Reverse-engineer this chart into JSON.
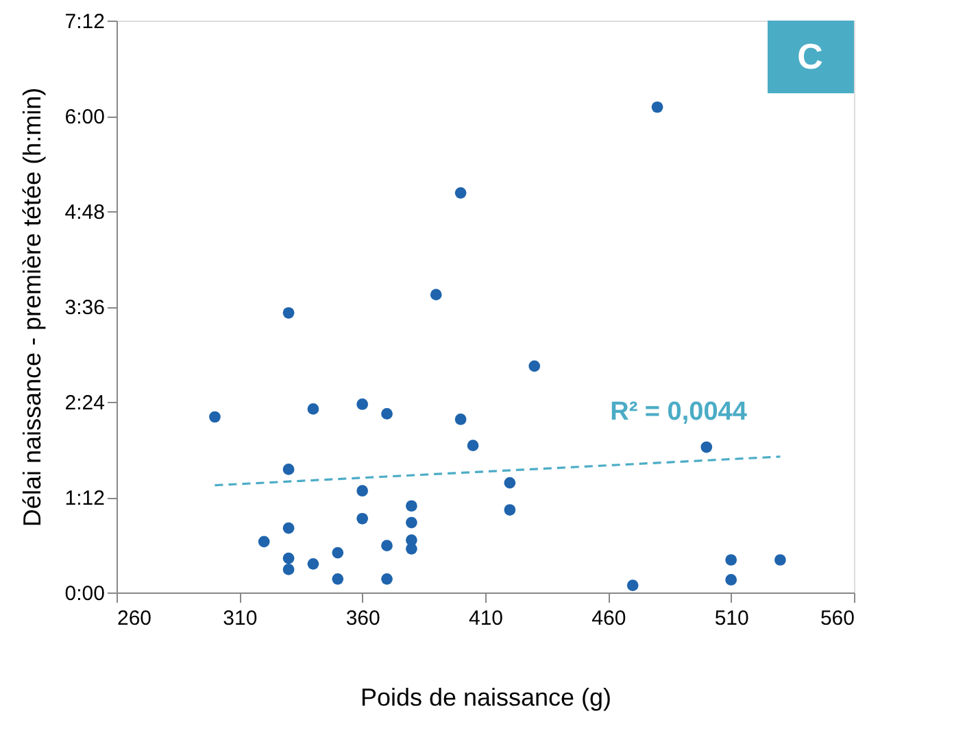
{
  "chart_data": {
    "type": "scatter",
    "xlabel": "Poids de naissance (g)",
    "ylabel": "Délai naissance - première tétée (h:min)",
    "xlim": [
      260,
      560
    ],
    "xticks": [
      260,
      310,
      360,
      410,
      460,
      510,
      560
    ],
    "ylim": [
      0,
      7.2
    ],
    "yticks": [
      {
        "value": 0,
        "label": "0:00"
      },
      {
        "value": 1.2,
        "label": "1:12"
      },
      {
        "value": 2.4,
        "label": "2:24"
      },
      {
        "value": 3.6,
        "label": "3:36"
      },
      {
        "value": 4.8,
        "label": "4:48"
      },
      {
        "value": 6,
        "label": "6:00"
      },
      {
        "value": 7.2,
        "label": "7:12"
      }
    ],
    "grid": false,
    "annotations": [
      "R² = 0,0044",
      "C"
    ],
    "series": [
      {
        "color": "#1f64ad",
        "marker": "circle",
        "x": [
          300,
          320,
          330,
          330,
          330,
          330,
          330,
          340,
          340,
          350,
          350,
          360,
          360,
          360,
          370,
          370,
          370,
          380,
          380,
          380,
          380,
          390,
          400,
          400,
          405,
          420,
          420,
          430,
          470,
          480,
          500,
          510,
          510,
          530
        ],
        "values": [
          2.21,
          0.64,
          3.52,
          1.55,
          0.81,
          0.43,
          0.29,
          2.31,
          0.36,
          0.5,
          0.17,
          2.37,
          1.28,
          0.93,
          2.25,
          0.59,
          0.17,
          1.09,
          0.88,
          0.66,
          0.55,
          3.75,
          5.03,
          2.18,
          1.85,
          1.38,
          1.04,
          2.85,
          0.09,
          6.11,
          1.83,
          0.41,
          0.16,
          0.41
        ]
      },
      {
        "type": "line",
        "color": "#4bacc6",
        "line_style": "dashed",
        "marker": "none",
        "x": [
          300,
          530
        ],
        "values": [
          1.35,
          1.71
        ]
      }
    ]
  }
}
